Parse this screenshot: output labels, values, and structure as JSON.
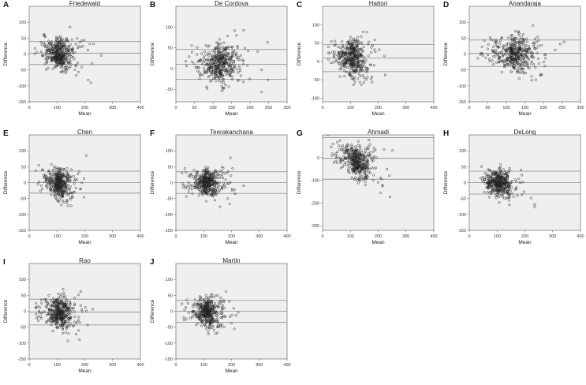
{
  "figure": {
    "xlabel": "Mean",
    "ylabel": "Difference"
  },
  "chart_data": [
    {
      "letter": "A",
      "title": "Friedewald",
      "type": "scatter",
      "xlim": [
        0,
        400
      ],
      "ylim": [
        -150,
        150
      ],
      "xticks": [
        0,
        100,
        200,
        300,
        400
      ],
      "yticks": [
        -150,
        -100,
        -50,
        0,
        50,
        100
      ],
      "lines": [
        39,
        3,
        -33
      ],
      "cloud": {
        "x_center": 95,
        "x_spread": 38,
        "y_center": 3,
        "y_spread": 22,
        "n": 420,
        "slope": -0.12,
        "seed": 11
      }
    },
    {
      "letter": "B",
      "title": "De Cordova",
      "type": "scatter",
      "xlim": [
        0,
        300
      ],
      "ylim": [
        -80,
        150
      ],
      "xticks": [
        0,
        50,
        100,
        150,
        200,
        250,
        300
      ],
      "yticks": [
        -50,
        0,
        50,
        100
      ],
      "lines": [
        46,
        10,
        -26
      ],
      "cloud": {
        "x_center": 105,
        "x_spread": 40,
        "y_center": 12,
        "y_spread": 20,
        "n": 420,
        "slope": 0.05,
        "seed": 23
      }
    },
    {
      "letter": "C",
      "title": "Hattori",
      "type": "scatter",
      "xlim": [
        0,
        400
      ],
      "ylim": [
        -110,
        150
      ],
      "xticks": [
        0,
        100,
        200,
        300,
        400
      ],
      "yticks": [
        -100,
        -50,
        0,
        50,
        100
      ],
      "lines": [
        46,
        9,
        -28
      ],
      "cloud": {
        "x_center": 95,
        "x_spread": 38,
        "y_center": 12,
        "y_spread": 22,
        "n": 420,
        "slope": -0.15,
        "seed": 37
      }
    },
    {
      "letter": "D",
      "title": "Anandaraja",
      "type": "scatter",
      "xlim": [
        0,
        300
      ],
      "ylim": [
        -150,
        150
      ],
      "xticks": [
        0,
        50,
        100,
        150,
        200,
        250,
        300
      ],
      "yticks": [
        -150,
        -100,
        -50,
        0,
        50,
        100
      ],
      "lines": [
        44,
        2,
        -39
      ],
      "cloud": {
        "x_center": 110,
        "x_spread": 42,
        "y_center": 2,
        "y_spread": 24,
        "n": 420,
        "slope": -0.05,
        "seed": 41
      }
    },
    {
      "letter": "E",
      "title": "Chen",
      "type": "scatter",
      "xlim": [
        0,
        400
      ],
      "ylim": [
        -150,
        150
      ],
      "xticks": [
        0,
        100,
        200,
        300,
        400
      ],
      "yticks": [
        -150,
        -100,
        -50,
        0,
        50,
        100
      ],
      "lines": [
        36,
        0,
        -33
      ],
      "cloud": {
        "x_center": 95,
        "x_spread": 38,
        "y_center": 0,
        "y_spread": 20,
        "n": 420,
        "slope": -0.18,
        "seed": 53
      }
    },
    {
      "letter": "F",
      "title": "Teerakanchana",
      "type": "scatter",
      "xlim": [
        0,
        400
      ],
      "ylim": [
        -150,
        150
      ],
      "xticks": [
        0,
        100,
        200,
        300,
        400
      ],
      "yticks": [
        -150,
        -100,
        -50,
        0,
        50,
        100
      ],
      "lines": [
        34,
        0,
        -34
      ],
      "cloud": {
        "x_center": 100,
        "x_spread": 36,
        "y_center": 1,
        "y_spread": 18,
        "n": 420,
        "slope": -0.1,
        "seed": 67
      }
    },
    {
      "letter": "G",
      "title": "Ahmadi",
      "type": "scatter",
      "xlim": [
        0,
        400
      ],
      "ylim": [
        -320,
        100
      ],
      "xticks": [
        0,
        100,
        200,
        300,
        400
      ],
      "yticks": [
        -300,
        -200,
        -100,
        0
      ],
      "lines": [
        88,
        -3,
        -95
      ],
      "cloud": {
        "x_center": 110,
        "x_spread": 42,
        "y_center": -10,
        "y_spread": 30,
        "n": 420,
        "slope": -0.55,
        "seed": 79
      }
    },
    {
      "letter": "H",
      "title": "DeLong",
      "type": "scatter",
      "xlim": [
        0,
        400
      ],
      "ylim": [
        -150,
        150
      ],
      "xticks": [
        0,
        100,
        200,
        300,
        400
      ],
      "yticks": [
        -150,
        -100,
        -50,
        0,
        50,
        100
      ],
      "lines": [
        36,
        0,
        -36
      ],
      "cloud": {
        "x_center": 95,
        "x_spread": 36,
        "y_center": 0,
        "y_spread": 18,
        "n": 420,
        "slope": -0.12,
        "seed": 83
      }
    },
    {
      "letter": "I",
      "title": "Rao",
      "type": "scatter",
      "xlim": [
        0,
        400
      ],
      "ylim": [
        -150,
        150
      ],
      "xticks": [
        0,
        100,
        200,
        300,
        400
      ],
      "yticks": [
        -150,
        -100,
        -50,
        0,
        50,
        100
      ],
      "lines": [
        38,
        -3,
        -43
      ],
      "cloud": {
        "x_center": 95,
        "x_spread": 38,
        "y_center": -2,
        "y_spread": 22,
        "n": 420,
        "slope": -0.15,
        "seed": 97
      }
    },
    {
      "letter": "J",
      "title": "Martin",
      "type": "scatter",
      "xlim": [
        0,
        400
      ],
      "ylim": [
        -150,
        150
      ],
      "xticks": [
        0,
        100,
        200,
        300,
        400
      ],
      "yticks": [
        -150,
        -100,
        -50,
        0,
        50,
        100
      ],
      "lines": [
        34,
        0,
        -35
      ],
      "cloud": {
        "x_center": 100,
        "x_spread": 36,
        "y_center": 1,
        "y_spread": 20,
        "n": 420,
        "slope": -0.12,
        "seed": 101
      }
    }
  ]
}
